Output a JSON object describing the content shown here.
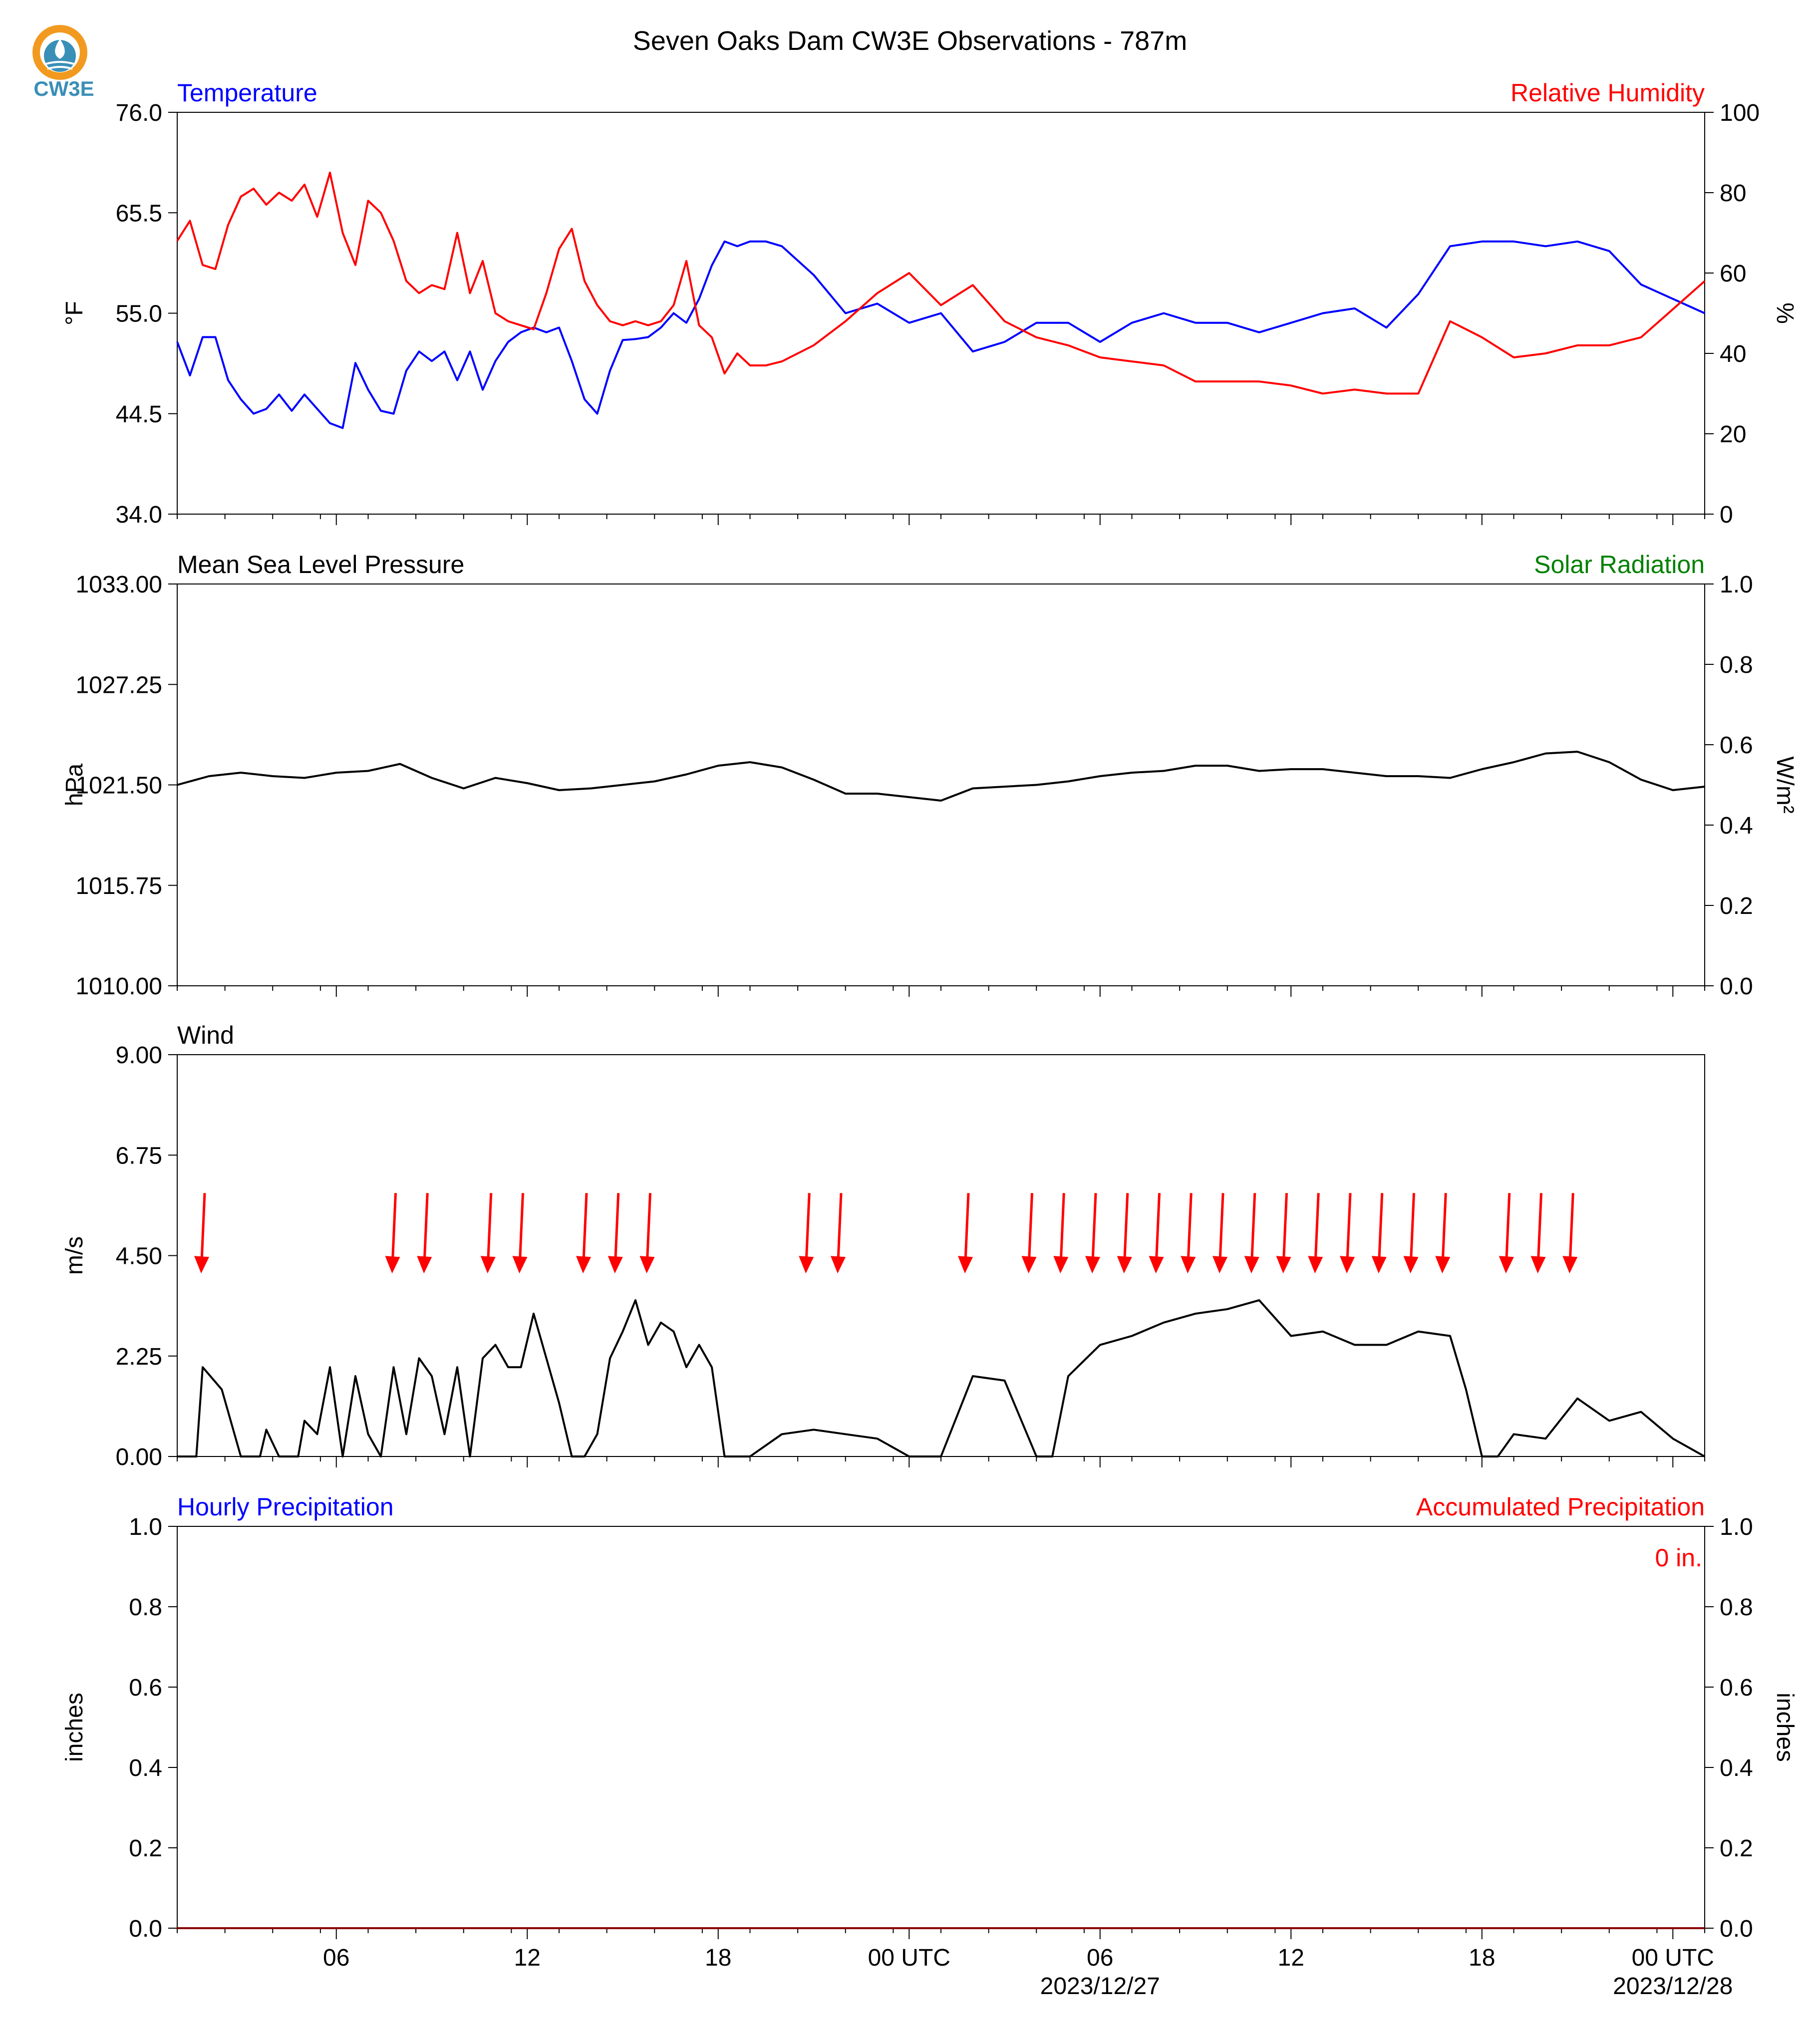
{
  "title": "Seven Oaks Dam CW3E Observations - 787m",
  "logo": {
    "text": "CW3E",
    "color": "#3a8fb7",
    "accent": "#f29a1f"
  },
  "colors": {
    "blue": "#0000ff",
    "red": "#ff0000",
    "green": "#008000",
    "black": "#000000"
  },
  "chart_data": [
    {
      "type": "line",
      "panel": "temperature-humidity",
      "left_title": "Temperature",
      "right_title": "Relative Humidity",
      "ylabel_left": "°F",
      "ylabel_right": "%",
      "ylim_left": [
        34.0,
        76.0
      ],
      "ylim_right": [
        0,
        100
      ],
      "yticks_left": [
        "76.0",
        "65.5",
        "55.0",
        "44.5",
        "34.0"
      ],
      "yticks_right": [
        "100",
        "80",
        "60",
        "40",
        "20",
        "0"
      ],
      "x_hours_range": [
        -5,
        43
      ],
      "series": [
        {
          "name": "Temperature",
          "axis": "left",
          "color": "#0000ff",
          "x": [
            -5,
            -4.6,
            -4.2,
            -3.8,
            -3.4,
            -3,
            -2.6,
            -2.2,
            -1.8,
            -1.4,
            -1,
            -0.6,
            -0.2,
            0.2,
            0.6,
            1,
            1.4,
            1.8,
            2.2,
            2.6,
            3,
            3.4,
            3.8,
            4.2,
            4.6,
            5,
            5.4,
            5.8,
            6.2,
            6.6,
            7,
            7.4,
            7.8,
            8.2,
            8.6,
            9,
            9.4,
            9.8,
            10.2,
            10.6,
            11,
            11.4,
            11.8,
            12.2,
            12.6,
            13,
            13.5,
            14,
            15,
            16,
            17,
            18,
            19,
            20,
            21,
            22,
            23,
            24,
            25,
            26,
            27,
            28,
            29,
            30,
            31,
            32,
            33,
            34,
            35,
            36,
            37,
            38,
            39,
            40,
            41,
            42,
            43
          ],
          "y": [
            52,
            48.5,
            52.5,
            52.5,
            48,
            46,
            44.5,
            45,
            46.5,
            44.8,
            46.5,
            45,
            43.5,
            43,
            49.8,
            47,
            44.8,
            44.5,
            49,
            51,
            50,
            51,
            48,
            51,
            47,
            50,
            52,
            53,
            53.5,
            53,
            53.5,
            50,
            46,
            44.5,
            49,
            52.2,
            52.3,
            52.5,
            53.5,
            55,
            54,
            56.5,
            60,
            62.5,
            62,
            62.5,
            62.5,
            62,
            59,
            55,
            56,
            54,
            55,
            51,
            52,
            54,
            54,
            52,
            54,
            55,
            54,
            54,
            53,
            54,
            55,
            55.5,
            53.5,
            57,
            62,
            62.5,
            62.5,
            62,
            62.5,
            61.5,
            58,
            56.5,
            55
          ]
        },
        {
          "name": "Relative Humidity",
          "axis": "right",
          "color": "#ff0000",
          "x": [
            -5,
            -4.6,
            -4.2,
            -3.8,
            -3.4,
            -3,
            -2.6,
            -2.2,
            -1.8,
            -1.4,
            -1,
            -0.6,
            -0.2,
            0.2,
            0.6,
            1,
            1.4,
            1.8,
            2.2,
            2.6,
            3,
            3.4,
            3.8,
            4.2,
            4.6,
            5,
            5.4,
            5.8,
            6.2,
            6.6,
            7,
            7.4,
            7.8,
            8.2,
            8.6,
            9,
            9.4,
            9.8,
            10.2,
            10.6,
            11,
            11.4,
            11.8,
            12.2,
            12.6,
            13,
            13.5,
            14,
            15,
            16,
            17,
            18,
            19,
            20,
            21,
            22,
            23,
            24,
            25,
            26,
            27,
            28,
            29,
            30,
            31,
            32,
            33,
            34,
            35,
            36,
            37,
            38,
            39,
            40,
            41,
            42,
            43
          ],
          "y": [
            68,
            73,
            62,
            61,
            72,
            79,
            81,
            77,
            80,
            78,
            82,
            74,
            85,
            70,
            62,
            78,
            75,
            68,
            58,
            55,
            57,
            56,
            70,
            55,
            63,
            50,
            48,
            47,
            46,
            55,
            66,
            71,
            58,
            52,
            48,
            47,
            48,
            47,
            48,
            52,
            63,
            47,
            44,
            35,
            40,
            37,
            37,
            38,
            42,
            48,
            55,
            60,
            52,
            57,
            48,
            44,
            42,
            39,
            38,
            37,
            33,
            33,
            33,
            32,
            30,
            31,
            30,
            30,
            48,
            44,
            39,
            40,
            42,
            42,
            44,
            51,
            58
          ]
        }
      ]
    },
    {
      "type": "line",
      "panel": "pressure-solar",
      "left_title": "Mean Sea Level Pressure",
      "right_title": "Solar Radiation",
      "ylabel_left": "hPa",
      "ylabel_right": "W/m²",
      "ylim_left": [
        1010.0,
        1033.0
      ],
      "ylim_right": [
        0.0,
        1.0
      ],
      "yticks_left": [
        "1033.00",
        "1027.25",
        "1021.50",
        "1015.75",
        "1010.00"
      ],
      "yticks_right": [
        "1.0",
        "0.8",
        "0.6",
        "0.4",
        "0.2",
        "0.0"
      ],
      "series": [
        {
          "name": "Mean Sea Level Pressure",
          "axis": "left",
          "color": "#000000",
          "x": [
            -5,
            -4,
            -3,
            -2,
            -1,
            0,
            1,
            2,
            3,
            4,
            5,
            6,
            7,
            8,
            9,
            10,
            11,
            12,
            13,
            14,
            15,
            16,
            17,
            18,
            19,
            20,
            21,
            22,
            23,
            24,
            25,
            26,
            27,
            28,
            29,
            30,
            31,
            32,
            33,
            34,
            35,
            36,
            37,
            38,
            39,
            40,
            41,
            42,
            43
          ],
          "y": [
            1021.5,
            1022,
            1022.2,
            1022.0,
            1021.9,
            1022.2,
            1022.3,
            1022.7,
            1021.9,
            1021.3,
            1021.9,
            1021.6,
            1021.2,
            1021.3,
            1021.5,
            1021.7,
            1022.1,
            1022.6,
            1022.8,
            1022.5,
            1021.8,
            1021.0,
            1021.0,
            1020.8,
            1020.6,
            1021.3,
            1021.4,
            1021.5,
            1021.7,
            1022.0,
            1022.2,
            1022.3,
            1022.6,
            1022.6,
            1022.3,
            1022.4,
            1022.4,
            1022.2,
            1022.0,
            1022.0,
            1021.9,
            1022.4,
            1022.8,
            1023.3,
            1023.4,
            1022.8,
            1021.8,
            1021.2,
            1021.4
          ]
        }
      ]
    },
    {
      "type": "line",
      "panel": "wind",
      "left_title": "Wind",
      "ylabel_left": "m/s",
      "ylim_left": [
        0.0,
        9.0
      ],
      "yticks_left": [
        "9.00",
        "6.75",
        "4.50",
        "2.25",
        "0.00"
      ],
      "series": [
        {
          "name": "Wind",
          "axis": "left",
          "color": "#000000",
          "x": [
            -5,
            -4.4,
            -4.2,
            -3.6,
            -3.0,
            -2.4,
            -2.2,
            -1.8,
            -1.2,
            -1.0,
            -0.6,
            -0.2,
            0.2,
            0.6,
            1.0,
            1.4,
            1.8,
            2.2,
            2.6,
            3.0,
            3.4,
            3.8,
            4.2,
            4.6,
            5.0,
            5.4,
            5.8,
            6.2,
            6.6,
            7.0,
            7.4,
            7.8,
            8.2,
            8.6,
            9.0,
            9.4,
            9.8,
            10.2,
            10.6,
            11.0,
            11.4,
            11.8,
            12.2,
            12.6,
            13.0,
            14,
            15,
            16,
            17,
            18,
            18.5,
            19,
            20,
            21,
            22,
            22.5,
            23,
            24,
            25,
            26,
            27,
            28,
            29,
            30,
            31,
            32,
            33,
            34,
            35,
            35.5,
            36,
            36.5,
            37,
            38,
            39,
            40,
            41,
            42,
            43
          ],
          "y": [
            0,
            0,
            2.0,
            1.5,
            0,
            0,
            0.6,
            0,
            0,
            0.8,
            0.5,
            2.0,
            0,
            1.8,
            0.5,
            0,
            2.0,
            0.5,
            2.2,
            1.8,
            0.5,
            2.0,
            0,
            2.2,
            2.5,
            2.0,
            2.0,
            3.2,
            2.2,
            1.2,
            0,
            0,
            0.5,
            2.2,
            2.8,
            3.5,
            2.5,
            3.0,
            2.8,
            2.0,
            2.5,
            2.0,
            0,
            0,
            0,
            0.5,
            0.6,
            0.5,
            0.4,
            0,
            0,
            0,
            1.8,
            1.7,
            0,
            0,
            1.8,
            2.5,
            2.7,
            3.0,
            3.2,
            3.3,
            3.5,
            2.7,
            2.8,
            2.5,
            2.5,
            2.8,
            2.7,
            1.5,
            0,
            0,
            0.5,
            0.4,
            1.3,
            0.8,
            1.0,
            0.4,
            0
          ]
        }
      ],
      "arrows_hours": [
        -4.2,
        1.8,
        2.8,
        4.8,
        5.8,
        7.8,
        8.8,
        9.8,
        14.8,
        15.8,
        19.8,
        21.8,
        22.8,
        23.8,
        24.8,
        25.8,
        26.8,
        27.8,
        28.8,
        29.8,
        30.8,
        31.8,
        32.8,
        33.8,
        34.8,
        36.8,
        37.8,
        38.8
      ],
      "arrow_color": "#ff0000"
    },
    {
      "type": "line",
      "panel": "precipitation",
      "left_title": "Hourly Precipitation",
      "right_title": "Accumulated Precipitation",
      "ylabel_left": "inches",
      "ylabel_right": "inches",
      "ylim_left": [
        0.0,
        1.0
      ],
      "ylim_right": [
        0.0,
        1.0
      ],
      "yticks_left": [
        "1.0",
        "0.8",
        "0.6",
        "0.4",
        "0.2",
        "0.0"
      ],
      "yticks_right": [
        "1.0",
        "0.8",
        "0.6",
        "0.4",
        "0.2",
        "0.0"
      ],
      "accumulated_label": "0 in.",
      "series": [
        {
          "name": "Accumulated Precipitation",
          "axis": "right",
          "color": "#8b0000",
          "x": [
            -5,
            43
          ],
          "y": [
            0,
            0
          ]
        }
      ]
    }
  ],
  "x_axis": {
    "tick_hours": [
      0,
      6,
      12,
      18,
      24,
      30,
      36,
      42
    ],
    "tick_labels": [
      "06",
      "12",
      "18",
      "00 UTC",
      "06",
      "12",
      "18",
      "00 UTC"
    ],
    "date_labels": [
      {
        "hour": 24,
        "text": "2023/12/27"
      },
      {
        "hour": 42,
        "text": "2023/12/28"
      }
    ],
    "minor_hours": [
      -5,
      -4,
      -3,
      -2,
      -1,
      1,
      2,
      3,
      4,
      5,
      6
    ]
  }
}
